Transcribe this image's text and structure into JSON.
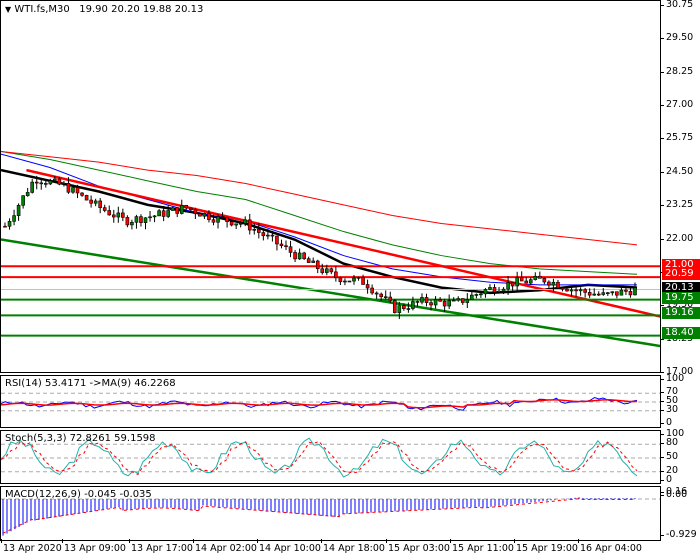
{
  "header": {
    "symbol": "WTI.fs,M30",
    "ohlc": "19.90 20.20 19.88 20.13",
    "menu_icon": "triangle-down-icon"
  },
  "main_axis": {
    "ticks": [
      "30.75",
      "29.50",
      "28.25",
      "27.00",
      "25.75",
      "24.50",
      "23.25",
      "22.00",
      "20.75",
      "19.50",
      "18.25",
      "17.00"
    ]
  },
  "price_tags": [
    {
      "label": "21.00",
      "color": "#ff0000"
    },
    {
      "label": "20.59",
      "color": "#ff0000"
    },
    {
      "label": "20.13",
      "color": "#000000"
    },
    {
      "label": "19.75",
      "color": "#008000"
    },
    {
      "label": "19.16",
      "color": "#008000"
    },
    {
      "label": "18.40",
      "color": "#008000"
    }
  ],
  "rsi": {
    "title": "RSI(14) 53.4171  ->MA(9) 46.2268",
    "ticks": [
      "100",
      "70",
      "50",
      "30",
      "0"
    ]
  },
  "stoch": {
    "title": "Stoch(5,3,3) 72.8261 59.1598",
    "ticks": [
      "100",
      "80",
      "50",
      "20",
      "0"
    ]
  },
  "macd": {
    "title": "MACD(12,26,9) -0.045 -0.035",
    "ticks": [
      "0.16",
      "0.00",
      "-0.929"
    ]
  },
  "time_axis": [
    "13 Apr 2020",
    "13 Apr 09:00",
    "13 Apr 17:00",
    "14 Apr 02:00",
    "14 Apr 10:00",
    "14 Apr 18:00",
    "15 Apr 03:00",
    "15 Apr 11:00",
    "15 Apr 19:00",
    "16 Apr 04:00"
  ],
  "chart_data": [
    {
      "type": "candlestick",
      "title": "WTI.fs,M30",
      "ohlc_last": {
        "open": 19.9,
        "high": 20.2,
        "low": 19.88,
        "close": 20.13
      },
      "ylim": [
        17.0,
        30.75
      ],
      "y_ticks": [
        30.75,
        29.5,
        28.25,
        27.0,
        25.75,
        24.5,
        23.25,
        22.0,
        20.75,
        19.5,
        18.25,
        17.0
      ],
      "x_labels": [
        "13 Apr 2020",
        "13 Apr 09:00",
        "13 Apr 17:00",
        "14 Apr 02:00",
        "14 Apr 10:00",
        "14 Apr 18:00",
        "15 Apr 03:00",
        "15 Apr 11:00",
        "15 Apr 19:00",
        "16 Apr 04:00"
      ],
      "horizontal_levels": [
        {
          "value": 21.0,
          "color": "#ff0000"
        },
        {
          "value": 20.59,
          "color": "#ff0000"
        },
        {
          "value": 19.75,
          "color": "#008000"
        },
        {
          "value": 19.16,
          "color": "#008000"
        },
        {
          "value": 18.4,
          "color": "#008000"
        }
      ],
      "current_price": 20.13,
      "trendlines": [
        {
          "name": "red-resistance",
          "color": "#ff0000",
          "from": [
            0.04,
            24.6
          ],
          "to": [
            1.0,
            19.1
          ]
        },
        {
          "name": "green-support",
          "color": "#008000",
          "from": [
            0.0,
            22.0
          ],
          "to": [
            1.0,
            18.0
          ]
        }
      ],
      "moving_averages": [
        {
          "name": "MA-black",
          "color": "#000000",
          "approx": [
            24.6,
            24.2,
            23.8,
            23.3,
            23.0,
            22.6,
            22.0,
            21.1,
            20.6,
            20.2,
            20.0,
            20.1,
            20.3,
            20.2
          ]
        },
        {
          "name": "MA-blue",
          "color": "#0000ff",
          "approx": [
            25.2,
            24.7,
            24.0,
            23.5,
            23.0,
            22.7,
            22.1,
            21.4,
            20.9,
            20.6,
            20.4,
            20.3,
            20.3,
            20.3
          ]
        },
        {
          "name": "MA-green",
          "color": "#008000",
          "approx": [
            25.3,
            25.0,
            24.6,
            24.2,
            23.8,
            23.5,
            22.9,
            22.3,
            21.8,
            21.4,
            21.1,
            20.9,
            20.8,
            20.7
          ]
        },
        {
          "name": "MA-red",
          "color": "#ff0000",
          "approx": [
            25.3,
            25.1,
            24.9,
            24.6,
            24.4,
            24.1,
            23.7,
            23.3,
            22.9,
            22.6,
            22.4,
            22.2,
            22.0,
            21.8
          ]
        }
      ],
      "close_path_approx": [
        22.5,
        24.3,
        24.0,
        23.3,
        22.7,
        22.9,
        23.2,
        22.8,
        22.6,
        21.9,
        21.2,
        20.6,
        20.4,
        19.4,
        19.7,
        19.6,
        20.1,
        20.4,
        20.5,
        20.1,
        19.9,
        20.13
      ]
    },
    {
      "type": "line",
      "title": "RSI(14) 53.4171 ->MA(9) 46.2268",
      "ylim": [
        0,
        100
      ],
      "levels": [
        70,
        50,
        30
      ],
      "series": [
        {
          "name": "RSI(14)",
          "color": "#0000ff",
          "last": 53.4171
        },
        {
          "name": "MA(9)",
          "color": "#ff0000",
          "last": 46.2268
        }
      ]
    },
    {
      "type": "line",
      "title": "Stoch(5,3,3) 72.8261 59.1598",
      "ylim": [
        0,
        100
      ],
      "levels": [
        80,
        50,
        20
      ],
      "series": [
        {
          "name": "%K",
          "color": "#20b2aa",
          "last": 72.8261
        },
        {
          "name": "%D",
          "color": "#ff0000",
          "style": "dashed",
          "last": 59.1598
        }
      ]
    },
    {
      "type": "bar",
      "title": "MACD(12,26,9) -0.045 -0.035",
      "ylim": [
        -0.929,
        0.16
      ],
      "series": [
        {
          "name": "MACD",
          "color": "#0000ff",
          "last": -0.045
        },
        {
          "name": "Signal",
          "color": "#ff0000",
          "style": "dashed",
          "last": -0.035
        }
      ]
    }
  ]
}
